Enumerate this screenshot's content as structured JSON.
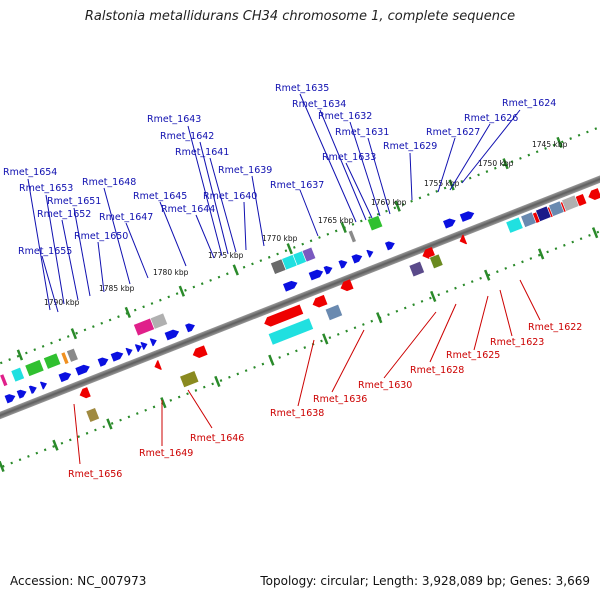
{
  "title": "Ralstonia metallidurans CH34 chromosome 1, complete sequence",
  "footer": {
    "accession": "Accession: NC_007973",
    "summary": "Topology: circular; Length: 3,928,089 bp; Genes: 3,669"
  },
  "ruler_labels": [
    "1745 kbp",
    "1750 kbp",
    "1755 kbp",
    "1760 kbp",
    "1765 kbp",
    "1770 kbp",
    "1775 kbp",
    "1780 kbp",
    "1785 kbp",
    "1790 kbp"
  ],
  "genes_top": [
    "Rmet_1624",
    "Rmet_1626",
    "Rmet_1627",
    "Rmet_1629",
    "Rmet_1631",
    "Rmet_1632",
    "Rmet_1633",
    "Rmet_1634",
    "Rmet_1635",
    "Rmet_1637",
    "Rmet_1639",
    "Rmet_1640",
    "Rmet_1641",
    "Rmet_1642",
    "Rmet_1643",
    "Rmet_1644",
    "Rmet_1645",
    "Rmet_1647",
    "Rmet_1648",
    "Rmet_1650",
    "Rmet_1651",
    "Rmet_1652",
    "Rmet_1653",
    "Rmet_1654",
    "Rmet_1655"
  ],
  "genes_bottom": [
    "Rmet_1622",
    "Rmet_1623",
    "Rmet_1625",
    "Rmet_1628",
    "Rmet_1630",
    "Rmet_1636",
    "Rmet_1638",
    "Rmet_1646",
    "Rmet_1649",
    "Rmet_1656"
  ],
  "colors": {
    "forward_label": "#1010b0",
    "reverse_label": "#cc0000",
    "forward_gene": "#0a10e0",
    "reverse_gene": "#ee0000",
    "tick": "#2a8a2a",
    "backbone": "#7a7a7a"
  }
}
